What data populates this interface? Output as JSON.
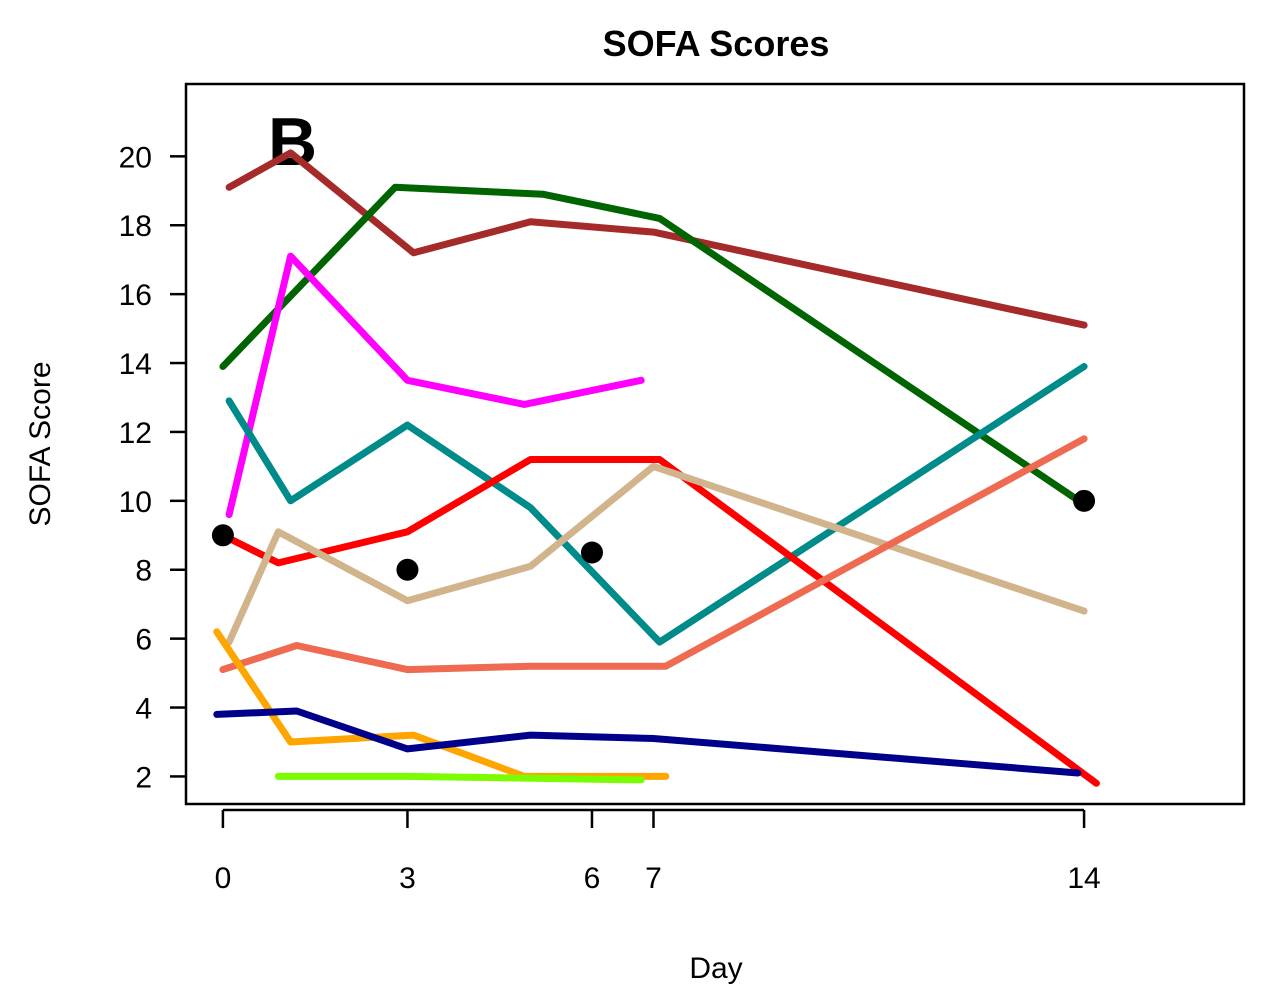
{
  "chart_data": {
    "type": "line",
    "title": "SOFA Scores",
    "panel_label": "B",
    "xlabel": "Day",
    "ylabel": "SOFA Score",
    "x_ticks": [
      0,
      3,
      6,
      7,
      14
    ],
    "y_ticks": [
      2,
      4,
      6,
      8,
      10,
      12,
      14,
      16,
      18,
      20
    ],
    "xlim": [
      -0.6,
      16.6
    ],
    "ylim": [
      1.2,
      22.1
    ],
    "grid": false,
    "legend": "none",
    "series": [
      {
        "color": "#a52a2a",
        "points": [
          [
            0.1,
            19.1
          ],
          [
            1.1,
            20.1
          ],
          [
            3.1,
            17.2
          ],
          [
            5.0,
            18.1
          ],
          [
            7.0,
            17.8
          ],
          [
            14.0,
            15.1
          ]
        ]
      },
      {
        "color": "#006400",
        "points": [
          [
            0.0,
            13.9
          ],
          [
            2.8,
            19.1
          ],
          [
            5.2,
            18.9
          ],
          [
            7.1,
            18.2
          ],
          [
            14.0,
            9.9
          ]
        ]
      },
      {
        "color": "#ff00ff",
        "points": [
          [
            0.1,
            9.6
          ],
          [
            1.1,
            17.1
          ],
          [
            3.0,
            13.5
          ],
          [
            4.9,
            12.8
          ],
          [
            6.8,
            13.5
          ]
        ]
      },
      {
        "color": "#008b8b",
        "points": [
          [
            0.1,
            12.9
          ],
          [
            1.1,
            10.0
          ],
          [
            3.0,
            12.2
          ],
          [
            5.0,
            9.8
          ],
          [
            7.1,
            5.9
          ],
          [
            14.0,
            13.9
          ]
        ]
      },
      {
        "color": "#ff0000",
        "points": [
          [
            0.0,
            9.0
          ],
          [
            0.9,
            8.2
          ],
          [
            3.0,
            9.1
          ],
          [
            5.0,
            11.2
          ],
          [
            7.1,
            11.2
          ],
          [
            14.2,
            1.8
          ]
        ]
      },
      {
        "color": "#d2b48c",
        "points": [
          [
            0.1,
            5.9
          ],
          [
            0.9,
            9.1
          ],
          [
            3.0,
            7.1
          ],
          [
            5.0,
            8.1
          ],
          [
            7.0,
            11.0
          ],
          [
            14.0,
            6.8
          ]
        ]
      },
      {
        "color": "#ee6a50",
        "points": [
          [
            0.0,
            5.1
          ],
          [
            1.2,
            5.8
          ],
          [
            3.0,
            5.1
          ],
          [
            5.0,
            5.2
          ],
          [
            7.2,
            5.2
          ],
          [
            14.0,
            11.8
          ]
        ]
      },
      {
        "color": "#ffa500",
        "points": [
          [
            -0.1,
            6.2
          ],
          [
            1.1,
            3.0
          ],
          [
            3.1,
            3.2
          ],
          [
            4.9,
            2.0
          ],
          [
            7.2,
            2.0
          ]
        ]
      },
      {
        "color": "#00008b",
        "points": [
          [
            -0.1,
            3.8
          ],
          [
            1.2,
            3.9
          ],
          [
            3.0,
            2.8
          ],
          [
            5.0,
            3.2
          ],
          [
            7.0,
            3.1
          ],
          [
            13.9,
            2.1
          ]
        ]
      },
      {
        "color": "#7cfc00",
        "points": [
          [
            0.9,
            2.0
          ],
          [
            3.0,
            2.0
          ],
          [
            6.8,
            1.9
          ]
        ]
      }
    ],
    "markers": {
      "color": "#000000",
      "points": [
        [
          0.0,
          9.0
        ],
        [
          3.0,
          8.0
        ],
        [
          6.0,
          8.5
        ],
        [
          14.0,
          10.0
        ]
      ]
    }
  }
}
